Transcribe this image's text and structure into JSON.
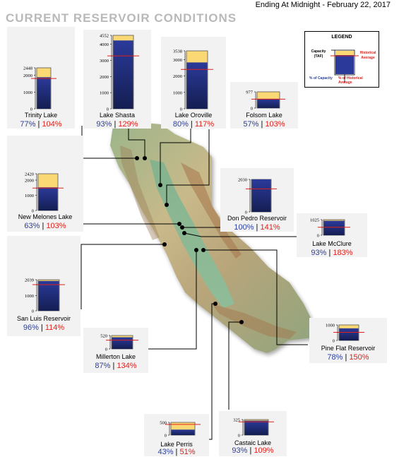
{
  "header": {
    "title": "CURRENT RESERVOIR CONDITIONS",
    "date": "Ending At Midnight - February 22, 2017"
  },
  "legend": {
    "title": "LEGEND",
    "capacity": "Capacity (TAF)",
    "historical": "Historical Average",
    "pct_capacity": "% of Capacity",
    "pct_historical": "% of Historical Average"
  },
  "colors": {
    "storage": "#2b3a9a",
    "storage_dark": "#141e52",
    "empty_capacity": "#fad974",
    "historical_line": "#e0211c",
    "capacity_text": "#2b3f9e",
    "historical_text": "#e0211c",
    "panel_bg": "#f2f2f2"
  },
  "chart_data": {
    "type": "bar",
    "reservoirs": [
      {
        "name": "Trinity Lake",
        "capacity": 2448,
        "ticks": [
          "2448",
          "2000",
          "1000",
          "0"
        ],
        "tick_values": [
          2448,
          2000,
          1000,
          0
        ],
        "pct_capacity": "77%",
        "pct_hist": "104%",
        "storage_fraction": 0.77,
        "historical_fraction": 0.74
      },
      {
        "name": "Lake Shasta",
        "capacity": 4552,
        "ticks": [
          "4552",
          "4000",
          "3000",
          "2000",
          "1000",
          "0"
        ],
        "tick_values": [
          4552,
          4000,
          3000,
          2000,
          1000,
          0
        ],
        "pct_capacity": "93%",
        "pct_hist": "129%",
        "storage_fraction": 0.93,
        "historical_fraction": 0.72
      },
      {
        "name": "Lake Oroville",
        "capacity": 3538,
        "ticks": [
          "3538",
          "3000",
          "2000",
          "1000",
          "0"
        ],
        "tick_values": [
          3538,
          3000,
          2000,
          1000,
          0
        ],
        "pct_capacity": "80%",
        "pct_hist": "117%",
        "storage_fraction": 0.8,
        "historical_fraction": 0.68
      },
      {
        "name": "Folsom Lake",
        "capacity": 977,
        "ticks": [
          "977",
          "0"
        ],
        "tick_values": [
          977,
          0
        ],
        "pct_capacity": "57%",
        "pct_hist": "103%",
        "storage_fraction": 0.57,
        "historical_fraction": 0.55
      },
      {
        "name": "New Melones Lake",
        "capacity": 2420,
        "ticks": [
          "2420",
          "2000",
          "1000",
          "0"
        ],
        "tick_values": [
          2420,
          2000,
          1000,
          0
        ],
        "pct_capacity": "63%",
        "pct_hist": "103%",
        "storage_fraction": 0.63,
        "historical_fraction": 0.61
      },
      {
        "name": "Don Pedro Reservoir",
        "capacity": 2030,
        "ticks": [
          "2030",
          "0"
        ],
        "tick_values": [
          2030,
          0
        ],
        "pct_capacity": "100%",
        "pct_hist": "141%",
        "storage_fraction": 1.0,
        "historical_fraction": 0.71
      },
      {
        "name": "Lake McClure",
        "capacity": 1025,
        "ticks": [
          "1025",
          "0"
        ],
        "tick_values": [
          1025,
          0
        ],
        "pct_capacity": "93%",
        "pct_hist": "183%",
        "storage_fraction": 0.93,
        "historical_fraction": 0.51
      },
      {
        "name": "San Luis Reservoir",
        "capacity": 2039,
        "ticks": [
          "2039",
          "1000",
          "0"
        ],
        "tick_values": [
          2039,
          1000,
          0
        ],
        "pct_capacity": "96%",
        "pct_hist": "114%",
        "storage_fraction": 0.96,
        "historical_fraction": 0.84
      },
      {
        "name": "Millerton Lake",
        "capacity": 520,
        "ticks": [
          "520",
          "0"
        ],
        "tick_values": [
          520,
          0
        ],
        "pct_capacity": "87%",
        "pct_hist": "134%",
        "storage_fraction": 0.87,
        "historical_fraction": 0.65
      },
      {
        "name": "Pine Flat Reservoir",
        "capacity": 1000,
        "ticks": [
          "1000",
          "0"
        ],
        "tick_values": [
          1000,
          0
        ],
        "pct_capacity": "78%",
        "pct_hist": "150%",
        "storage_fraction": 0.78,
        "historical_fraction": 0.52
      },
      {
        "name": "Lake Perris",
        "capacity": 500,
        "ticks": [
          "500",
          "0"
        ],
        "tick_values": [
          500,
          0
        ],
        "pct_capacity": "43%",
        "pct_hist": "51%",
        "storage_fraction": 0.43,
        "historical_fraction": 0.84
      },
      {
        "name": "Castaic Lake",
        "capacity": 325,
        "ticks": [
          "325",
          "0"
        ],
        "tick_values": [
          325,
          0
        ],
        "pct_capacity": "93%",
        "pct_hist": "109%",
        "storage_fraction": 0.93,
        "historical_fraction": 0.85
      }
    ]
  }
}
